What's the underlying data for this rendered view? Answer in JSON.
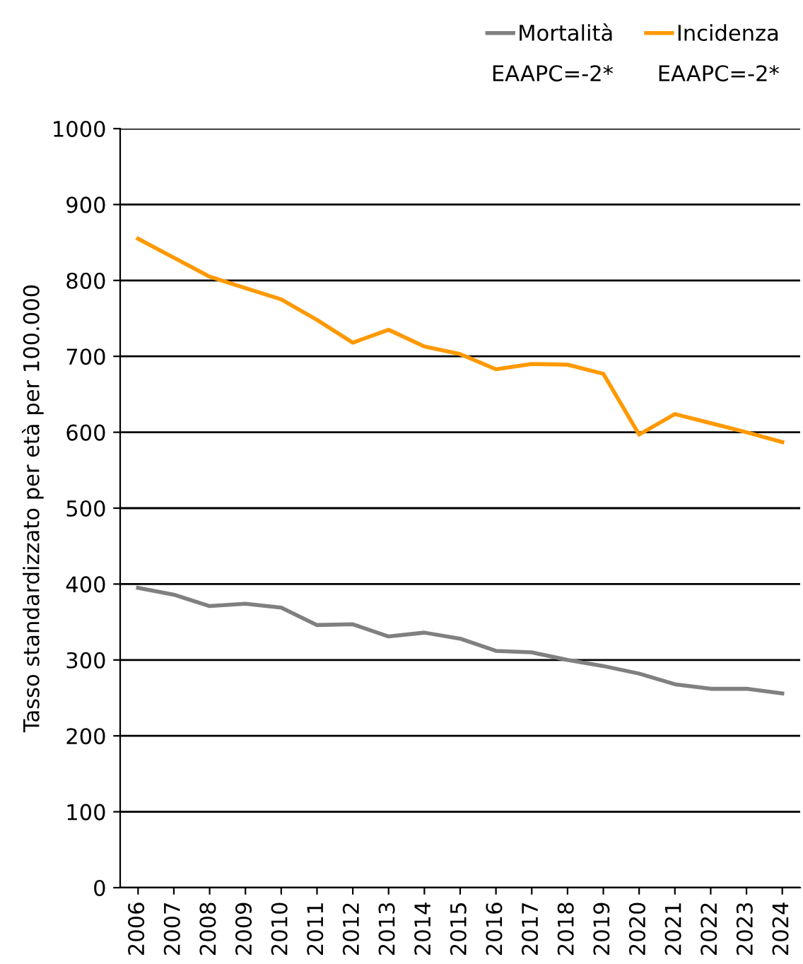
{
  "chart_data": {
    "type": "line",
    "ylabel": "Tasso standardizzato per età per 100.000",
    "categories": [
      "2006",
      "2007",
      "2008",
      "2009",
      "2010",
      "2011",
      "2012",
      "2013",
      "2014",
      "2015",
      "2016",
      "2017",
      "2018",
      "2019",
      "2020",
      "2021",
      "2022",
      "2023",
      "2024"
    ],
    "series": [
      {
        "name": "Mortalità",
        "color": "#808080",
        "values": [
          395,
          386,
          371,
          374,
          369,
          346,
          347,
          331,
          336,
          328,
          312,
          310,
          300,
          292,
          282,
          268,
          262,
          262,
          256
        ]
      },
      {
        "name": "Incidenza",
        "color": "#ff9900",
        "values": [
          855,
          830,
          805,
          790,
          775,
          748,
          718,
          735,
          713,
          703,
          683,
          690,
          689,
          677,
          597,
          624,
          612,
          600,
          587
        ]
      }
    ],
    "annotations": [
      "EAAPC=-2*",
      "EAAPC=-2*"
    ],
    "ylim": [
      0,
      1000
    ],
    "yticks": [
      0,
      100,
      200,
      300,
      400,
      500,
      600,
      700,
      800,
      900,
      1000
    ],
    "grid": "y",
    "legend": "top right",
    "marker": "none",
    "line_style": "solid"
  }
}
